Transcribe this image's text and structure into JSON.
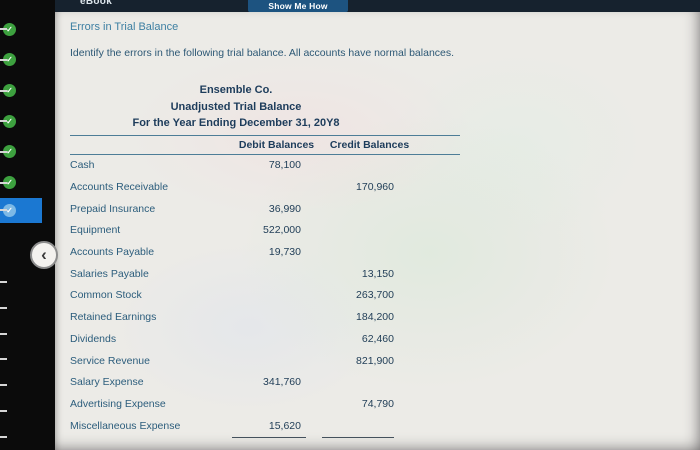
{
  "topbar": {
    "ebook_label": "eBook",
    "show_me_how_label": "Show Me How"
  },
  "sidebar": {
    "check_glyph": "✓",
    "back_button_glyph": "‹",
    "items": [
      {
        "state": "complete"
      },
      {
        "state": "complete"
      },
      {
        "state": "complete"
      },
      {
        "state": "complete"
      },
      {
        "state": "complete"
      },
      {
        "state": "complete"
      },
      {
        "state": "active"
      },
      {
        "state": "stub"
      },
      {
        "state": "stub"
      },
      {
        "state": "stub"
      },
      {
        "state": "stub"
      },
      {
        "state": "stub"
      },
      {
        "state": "stub"
      },
      {
        "state": "stub"
      }
    ]
  },
  "content": {
    "heading": "Errors in Trial Balance",
    "instruction": "Identify the errors in the following trial balance. All accounts have normal balances.",
    "table": {
      "company": "Ensemble Co.",
      "title": "Unadjusted Trial Balance",
      "period": "For the Year Ending December 31, 20Y8",
      "columns": [
        "Debit Balances",
        "Credit Balances"
      ],
      "rows": [
        {
          "account": "Cash",
          "debit": "78,100",
          "credit": ""
        },
        {
          "account": "Accounts Receivable",
          "debit": "",
          "credit": "170,960"
        },
        {
          "account": "Prepaid Insurance",
          "debit": "36,990",
          "credit": ""
        },
        {
          "account": "Equipment",
          "debit": "522,000",
          "credit": ""
        },
        {
          "account": "Accounts Payable",
          "debit": "19,730",
          "credit": ""
        },
        {
          "account": "Salaries Payable",
          "debit": "",
          "credit": "13,150"
        },
        {
          "account": "Common Stock",
          "debit": "",
          "credit": "263,700"
        },
        {
          "account": "Retained Earnings",
          "debit": "",
          "credit": "184,200"
        },
        {
          "account": "Dividends",
          "debit": "",
          "credit": "62,460"
        },
        {
          "account": "Service Revenue",
          "debit": "",
          "credit": "821,900"
        },
        {
          "account": "Salary Expense",
          "debit": "341,760",
          "credit": ""
        },
        {
          "account": "Advertising Expense",
          "debit": "",
          "credit": "74,790"
        },
        {
          "account": "Miscellaneous Expense",
          "debit": "15,620",
          "credit": ""
        }
      ]
    }
  }
}
